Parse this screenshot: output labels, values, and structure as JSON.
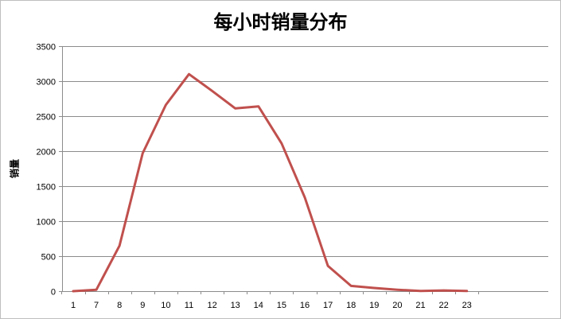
{
  "chart_data": {
    "type": "line",
    "title": "每小时销量分布",
    "xlabel": "",
    "ylabel": "销量",
    "categories": [
      "1",
      "7",
      "8",
      "9",
      "10",
      "11",
      "12",
      "13",
      "14",
      "15",
      "16",
      "17",
      "18",
      "19",
      "20",
      "21",
      "22",
      "23"
    ],
    "series": [
      {
        "values": [
          0,
          20,
          650,
          1970,
          2660,
          3100,
          2860,
          2610,
          2640,
          2110,
          1340,
          360,
          75,
          45,
          20,
          2,
          10,
          2
        ],
        "color": "#c0504d"
      }
    ],
    "ylim": [
      0,
      3500
    ],
    "yticks": [
      0,
      500,
      1000,
      1500,
      2000,
      2500,
      3000,
      3500
    ],
    "grid": "horizontal",
    "legend": "none"
  }
}
